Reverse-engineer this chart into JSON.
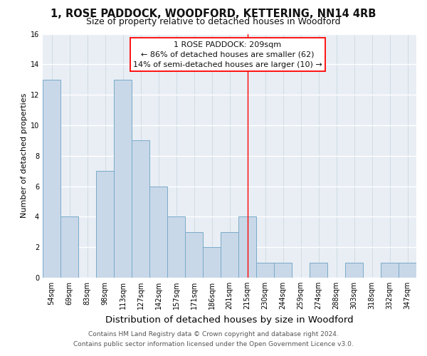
{
  "title": "1, ROSE PADDOCK, WOODFORD, KETTERING, NN14 4RB",
  "subtitle": "Size of property relative to detached houses in Woodford",
  "xlabel": "Distribution of detached houses by size in Woodford",
  "ylabel": "Number of detached properties",
  "bin_labels": [
    "54sqm",
    "69sqm",
    "83sqm",
    "98sqm",
    "113sqm",
    "127sqm",
    "142sqm",
    "157sqm",
    "171sqm",
    "186sqm",
    "201sqm",
    "215sqm",
    "230sqm",
    "244sqm",
    "259sqm",
    "274sqm",
    "288sqm",
    "303sqm",
    "318sqm",
    "332sqm",
    "347sqm"
  ],
  "bar_heights": [
    13,
    4,
    0,
    7,
    13,
    9,
    6,
    4,
    3,
    2,
    3,
    4,
    1,
    1,
    0,
    1,
    0,
    1,
    0,
    1,
    1
  ],
  "bar_color": "#c8d8e8",
  "bar_edge_color": "#7aaac8",
  "ylim": [
    0,
    16
  ],
  "yticks": [
    0,
    2,
    4,
    6,
    8,
    10,
    12,
    14,
    16
  ],
  "property_line_x": 11.0,
  "annotation_title": "1 ROSE PADDOCK: 209sqm",
  "annotation_line1": "← 86% of detached houses are smaller (62)",
  "annotation_line2": "14% of semi-detached houses are larger (10) →",
  "footer_line1": "Contains HM Land Registry data © Crown copyright and database right 2024.",
  "footer_line2": "Contains public sector information licensed under the Open Government Licence v3.0.",
  "plot_bg_color": "#e8eef4",
  "fig_bg_color": "#ffffff",
  "grid_color": "#d0d8e0",
  "title_fontsize": 10.5,
  "subtitle_fontsize": 9,
  "xlabel_fontsize": 9.5,
  "ylabel_fontsize": 8,
  "tick_fontsize": 7,
  "footer_fontsize": 6.5,
  "annot_fontsize": 8
}
